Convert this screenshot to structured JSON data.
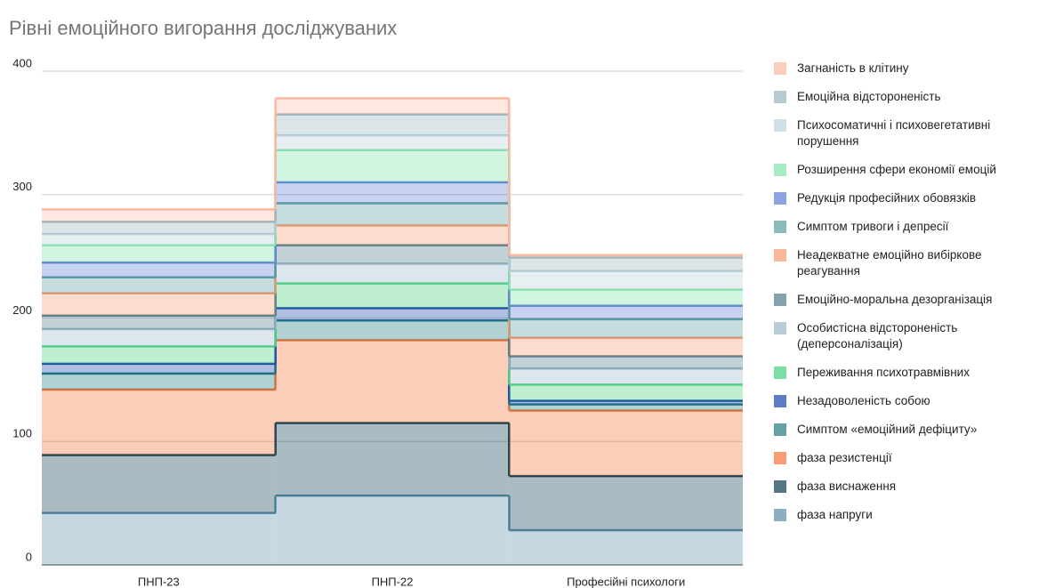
{
  "chart_data": {
    "type": "stepped-area",
    "title": "Рівні емоційного вигорання досліджуваних",
    "categories": [
      "ПНП-23",
      "ПНП-22",
      "Професійні психологи"
    ],
    "ylim": [
      0,
      400
    ],
    "yticks": [
      0,
      100,
      200,
      300,
      400
    ],
    "grid": true,
    "stacked": true,
    "legend": "right",
    "series": [
      {
        "name": "Загнаність в клітину",
        "color": "#f9b9a0",
        "values": [
          10,
          13,
          2
        ]
      },
      {
        "name": "Емоційна відстороненість",
        "color": "#98b4be",
        "values": [
          10,
          17,
          11
        ]
      },
      {
        "name": "Психосоматичні і психовегетативні порушення",
        "color": "#b9d2de",
        "values": [
          9,
          12,
          15
        ]
      },
      {
        "name": "Розширення сфери економії емоцій",
        "color": "#7fe3a9",
        "values": [
          14,
          26,
          13
        ]
      },
      {
        "name": "Редукція професійних обовязків",
        "color": "#5b7fd0",
        "values": [
          12,
          17,
          11
        ]
      },
      {
        "name": "Симптом тривоги і депресії",
        "color": "#5b9ea0",
        "values": [
          13,
          18,
          15
        ]
      },
      {
        "name": "Неадекватне емоційно вибіркове реагування",
        "color": "#f59a6e",
        "values": [
          18,
          16,
          15
        ]
      },
      {
        "name": "Емоційно-моральна дезорганізація",
        "color": "#4d7a8a",
        "values": [
          11,
          15,
          10
        ]
      },
      {
        "name": "Особистісна відстороненість (деперсоналізація)",
        "color": "#9ab8c8",
        "values": [
          14,
          16,
          13
        ]
      },
      {
        "name": "Переживання психотравмівних",
        "color": "#45d07a",
        "values": [
          14,
          20,
          13
        ]
      },
      {
        "name": "Незадоволеність собою",
        "color": "#1a46a8",
        "values": [
          8,
          10,
          3
        ]
      },
      {
        "name": "Симптом «емоційний дефіциту»",
        "color": "#1f7a80",
        "values": [
          13,
          16,
          5
        ]
      },
      {
        "name": "фаза резистенції",
        "color": "#f4733a",
        "values": [
          53,
          67,
          53
        ]
      },
      {
        "name": "фаза виснаження",
        "color": "#0b3d4f",
        "values": [
          47,
          59,
          44
        ]
      },
      {
        "name": "фаза напруги",
        "color": "#5b8fa8",
        "values": [
          42,
          56,
          28
        ]
      }
    ]
  }
}
